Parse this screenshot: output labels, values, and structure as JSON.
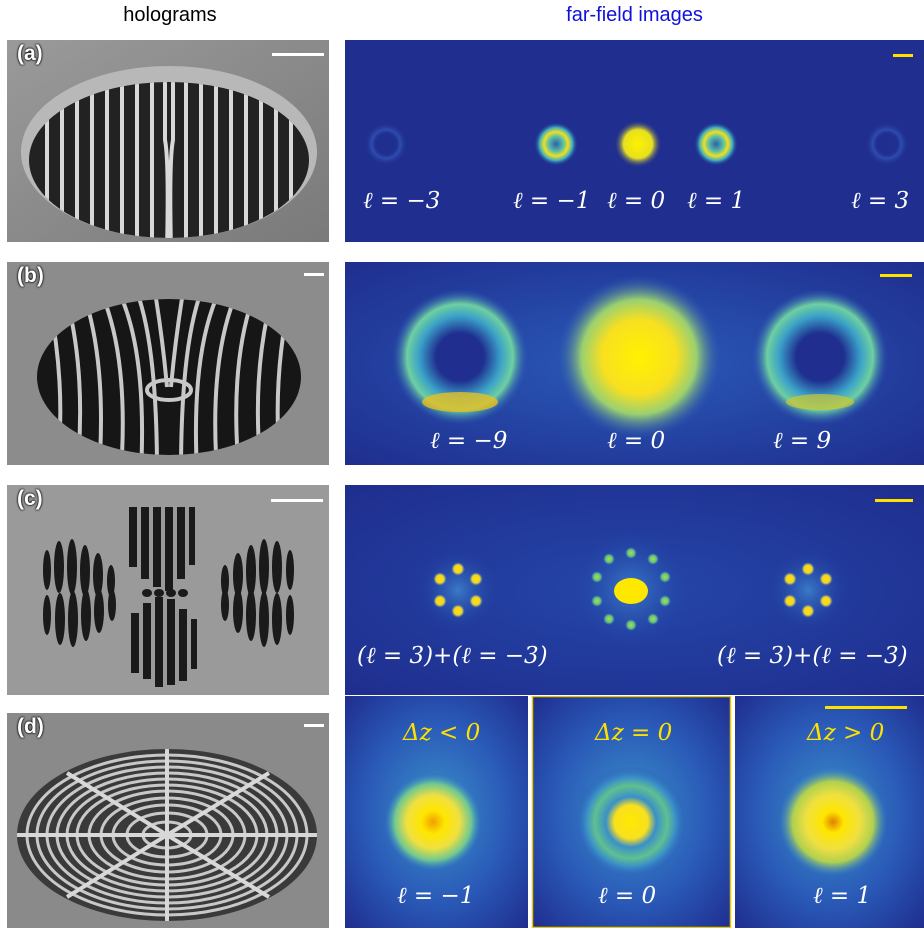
{
  "headers": {
    "holograms": "holograms",
    "farfield": "far-field images"
  },
  "panels": {
    "a": {
      "label": "(a)",
      "modes": [
        "ℓ = −3",
        "ℓ = −1",
        "ℓ = 0",
        "ℓ = 1",
        "ℓ = 3"
      ]
    },
    "b": {
      "label": "(b)",
      "modes": [
        "ℓ = −9",
        "ℓ = 0",
        "ℓ = 9"
      ]
    },
    "c": {
      "label": "(c)",
      "modes": [
        "(ℓ = 3)+(ℓ = −3)",
        "(ℓ = 3)+(ℓ = −3)"
      ]
    },
    "d": {
      "label": "(d)",
      "conditions": [
        "Δz < 0",
        "Δz = 0",
        "Δz > 0"
      ],
      "modes": [
        "ℓ = −1",
        "ℓ = 0",
        "ℓ = 1"
      ]
    }
  },
  "colors": {
    "far_field_background": "#1f2e8f",
    "scale_bar_far_field": "#ffe100",
    "scale_bar_sem": "#ffffff",
    "header_right": "#1111dd"
  }
}
